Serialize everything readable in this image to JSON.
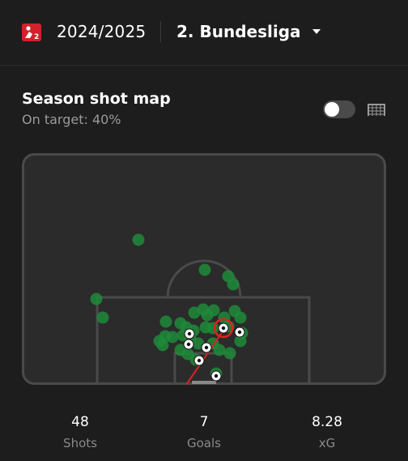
{
  "header": {
    "season": "2024/2025",
    "league": "2. Bundesliga",
    "league_logo_icon": "bundesliga-2-logo-icon",
    "dropdown_icon": "caret-down-icon"
  },
  "shot_map": {
    "title": "Season shot map",
    "subtitle": "On target: 40%",
    "toggle_state": "off",
    "view_icon": "goal-net-icon",
    "colors": {
      "missed_shot": "#1f8a3a",
      "goal_marker": "#ffffff",
      "selected_ring": "#e02020",
      "pitch_line": "#4a4a4a",
      "pitch_bg": "#2b2b2b"
    }
  },
  "stats": [
    {
      "value": "48",
      "label": "Shots"
    },
    {
      "value": "7",
      "label": "Goals"
    },
    {
      "value": "8.28",
      "label": "xG"
    }
  ]
}
